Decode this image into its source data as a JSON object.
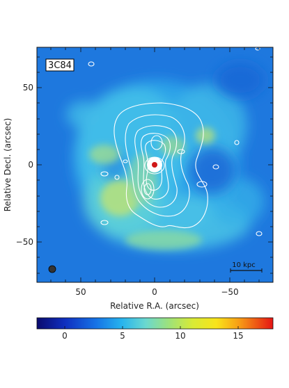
{
  "image": {
    "source_label": "3C84",
    "x_axis_title": "Relative R.A. (arcsec)",
    "y_axis_title": "Relative Decl. (arcsec)",
    "x_ticks": [
      "50",
      "0",
      "−50"
    ],
    "y_ticks": [
      "50",
      "0",
      "−50"
    ],
    "scale_bar_label": "10 kpc",
    "colorbar_ticks": [
      "0",
      "5",
      "10",
      "15"
    ],
    "colors": {
      "map_background": "#1f7fe0",
      "contour": "#ffffff",
      "core": "#d01818"
    }
  }
}
